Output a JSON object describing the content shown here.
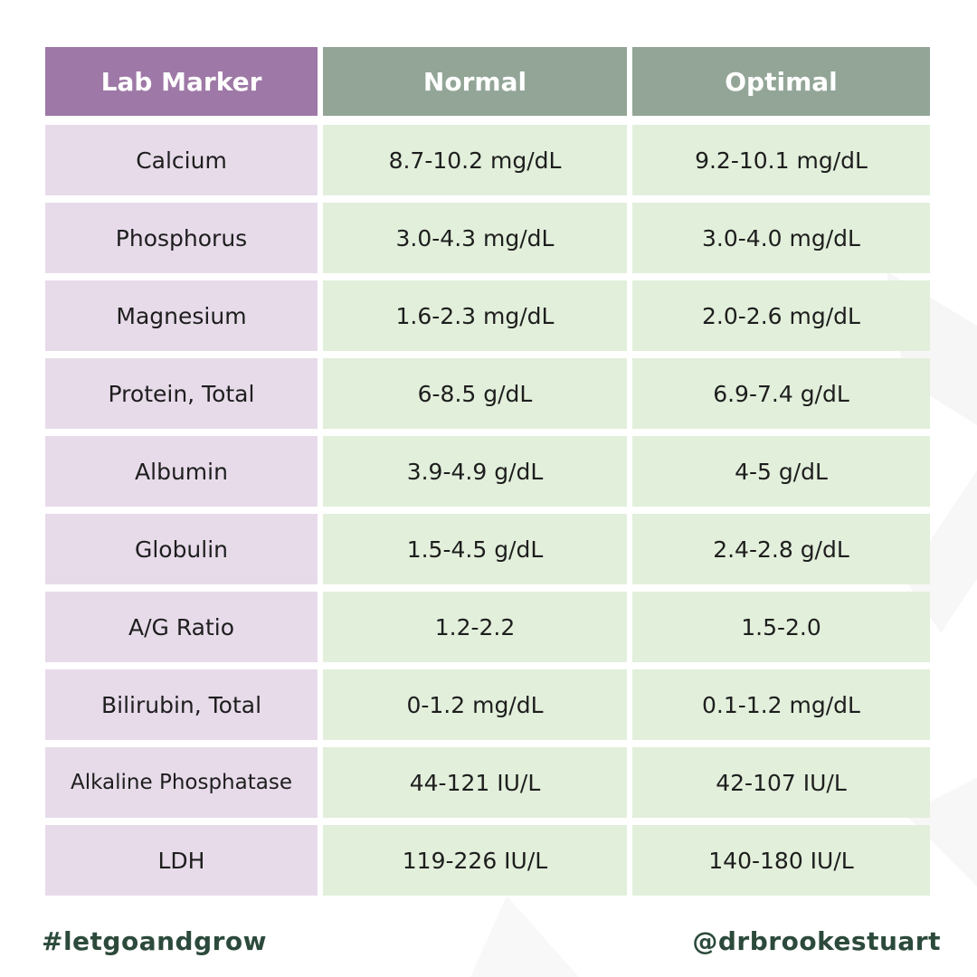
{
  "table": {
    "headers": [
      "Lab Marker",
      "Normal",
      "Optimal"
    ],
    "rows": [
      {
        "marker": "Calcium",
        "normal": "8.7-10.2 mg/dL",
        "optimal": "9.2-10.1 mg/dL"
      },
      {
        "marker": "Phosphorus",
        "normal": "3.0-4.3 mg/dL",
        "optimal": "3.0-4.0 mg/dL"
      },
      {
        "marker": "Magnesium",
        "normal": "1.6-2.3 mg/dL",
        "optimal": "2.0-2.6 mg/dL"
      },
      {
        "marker": "Protein, Total",
        "normal": "6-8.5 g/dL",
        "optimal": "6.9-7.4 g/dL"
      },
      {
        "marker": "Albumin",
        "normal": "3.9-4.9 g/dL",
        "optimal": "4-5 g/dL"
      },
      {
        "marker": "Globulin",
        "normal": "1.5-4.5 g/dL",
        "optimal": "2.4-2.8 g/dL"
      },
      {
        "marker": "A/G Ratio",
        "normal": "1.2-2.2",
        "optimal": "1.5-2.0"
      },
      {
        "marker": "Bilirubin, Total",
        "normal": "0-1.2 mg/dL",
        "optimal": "0.1-1.2 mg/dL"
      },
      {
        "marker": "Alkaline Phosphatase",
        "normal": "44-121 IU/L",
        "optimal": "42-107 IU/L"
      },
      {
        "marker": "LDH",
        "normal": "119-226 IU/L",
        "optimal": "140-180 IU/L"
      }
    ]
  },
  "footer": {
    "hashtag": "#letgoandgrow",
    "handle": "@drbrookestuart"
  },
  "colors": {
    "header_marker": "#9e78a6",
    "header_range": "#92a597",
    "cell_marker": "#e7dbea",
    "cell_range": "#e2efdb",
    "footer_text": "#2c4a3b"
  }
}
